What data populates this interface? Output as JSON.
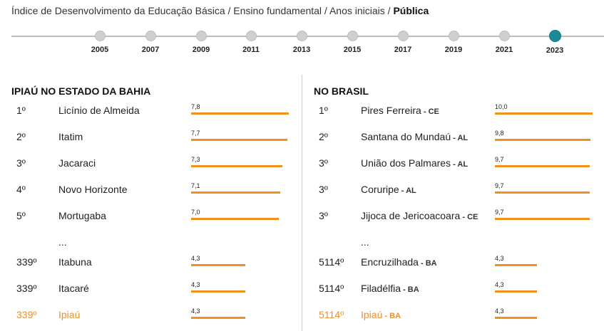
{
  "breadcrumb": {
    "path": "Índice de Desenvolvimento da Educação Básica / Ensino fundamental / Anos iniciais / ",
    "current": "Pública"
  },
  "timeline": {
    "years": [
      "2005",
      "2007",
      "2009",
      "2011",
      "2013",
      "2015",
      "2017",
      "2019",
      "2021",
      "2023"
    ],
    "selected": "2023"
  },
  "state": {
    "title": "IPIAÚ NO ESTADO DA BAHIA",
    "ellipsis": "...",
    "rows": [
      {
        "rank": "1º",
        "name": "Licínio de Almeida",
        "value": "7,8",
        "num": 7.8
      },
      {
        "rank": "2º",
        "name": "Itatim",
        "value": "7,7",
        "num": 7.7
      },
      {
        "rank": "3º",
        "name": "Jacaraci",
        "value": "7,3",
        "num": 7.3
      },
      {
        "rank": "4º",
        "name": "Novo Horizonte",
        "value": "7,1",
        "num": 7.1
      },
      {
        "rank": "5º",
        "name": "Mortugaba",
        "value": "7,0",
        "num": 7.0
      },
      {
        "rank": "339º",
        "name": "Itabuna",
        "value": "4,3",
        "num": 4.3
      },
      {
        "rank": "339º",
        "name": "Itacaré",
        "value": "4,3",
        "num": 4.3
      },
      {
        "rank": "339º",
        "name": "Ipiaú",
        "value": "4,3",
        "num": 4.3,
        "highlight": true
      }
    ]
  },
  "brazil": {
    "title": "NO BRASIL",
    "ellipsis": "...",
    "rows": [
      {
        "rank": "1º",
        "name": "Pires Ferreira",
        "uf": " - CE",
        "value": "10,0",
        "num": 10.0
      },
      {
        "rank": "2º",
        "name": "Santana do Mundaú",
        "uf": " - AL",
        "value": "9,8",
        "num": 9.8
      },
      {
        "rank": "3º",
        "name": "União dos Palmares",
        "uf": " - AL",
        "value": "9,7",
        "num": 9.7
      },
      {
        "rank": "3º",
        "name": "Coruripe",
        "uf": " - AL",
        "value": "9,7",
        "num": 9.7
      },
      {
        "rank": "3º",
        "name": "Jijoca de Jericoacoara",
        "uf": " - CE",
        "value": "9,7",
        "num": 9.7
      },
      {
        "rank": "5114º",
        "name": "Encruzilhada",
        "uf": " - BA",
        "value": "4,3",
        "num": 4.3
      },
      {
        "rank": "5114º",
        "name": "Filadélfia",
        "uf": " - BA",
        "value": "4,3",
        "num": 4.3
      },
      {
        "rank": "5114º",
        "name": "Ipiaú",
        "uf": " - BA",
        "value": "4,3",
        "num": 4.3,
        "highlight": true
      }
    ]
  }
}
